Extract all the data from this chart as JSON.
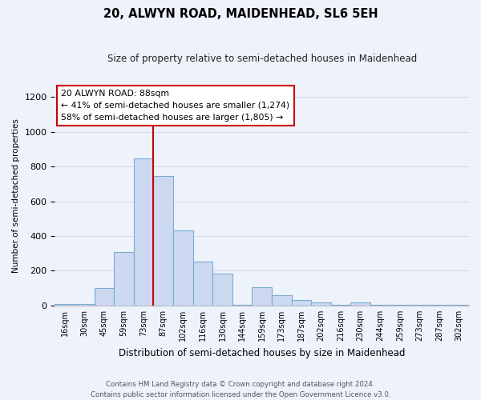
{
  "title": "20, ALWYN ROAD, MAIDENHEAD, SL6 5EH",
  "subtitle": "Size of property relative to semi-detached houses in Maidenhead",
  "xlabel": "Distribution of semi-detached houses by size in Maidenhead",
  "ylabel": "Number of semi-detached properties",
  "bin_labels": [
    "16sqm",
    "30sqm",
    "45sqm",
    "59sqm",
    "73sqm",
    "87sqm",
    "102sqm",
    "116sqm",
    "130sqm",
    "144sqm",
    "159sqm",
    "173sqm",
    "187sqm",
    "202sqm",
    "216sqm",
    "230sqm",
    "244sqm",
    "259sqm",
    "273sqm",
    "287sqm",
    "302sqm"
  ],
  "bar_heights": [
    10,
    10,
    100,
    310,
    845,
    745,
    430,
    255,
    185,
    5,
    105,
    60,
    30,
    20,
    3,
    20,
    3,
    3,
    3,
    3,
    3
  ],
  "bar_color": "#ccd9f0",
  "bar_edge_color": "#7aabcf",
  "property_bin_index": 5,
  "annotation_title": "20 ALWYN ROAD: 88sqm",
  "annotation_line1": "← 41% of semi-detached houses are smaller (1,274)",
  "annotation_line2": "58% of semi-detached houses are larger (1,805) →",
  "annotation_box_color": "#ffffff",
  "annotation_border_color": "#cc0000",
  "vline_color": "#cc0000",
  "ylim": [
    0,
    1260
  ],
  "yticks": [
    0,
    200,
    400,
    600,
    800,
    1000,
    1200
  ],
  "footer_line1": "Contains HM Land Registry data © Crown copyright and database right 2024.",
  "footer_line2": "Contains public sector information licensed under the Open Government Licence v3.0.",
  "background_color": "#eef2fb",
  "plot_background_color": "#eef2fb",
  "grid_color": "#d0d8ec"
}
